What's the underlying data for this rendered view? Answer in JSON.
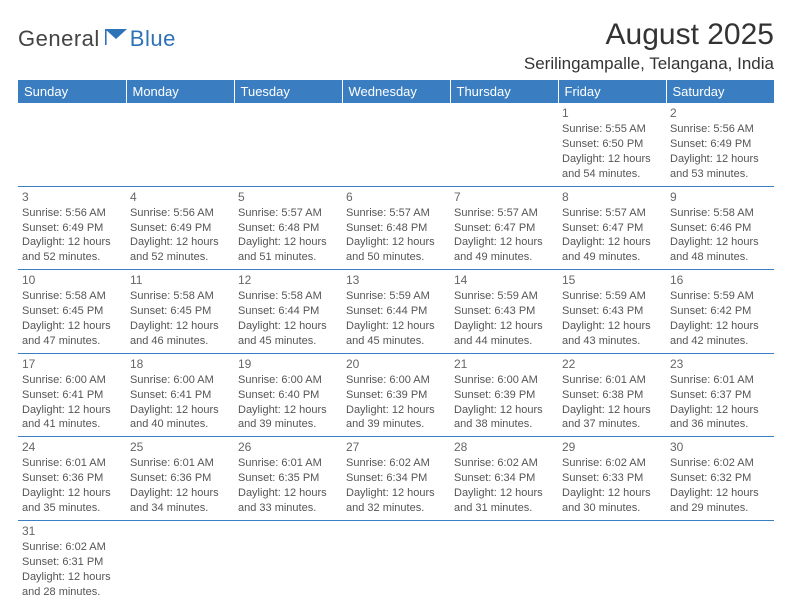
{
  "logo": {
    "text1": "General",
    "text2": "Blue"
  },
  "title": "August 2025",
  "location": "Serilingampalle, Telangana, India",
  "colors": {
    "header_bg": "#3a7ec1",
    "header_text": "#ffffff",
    "cell_border": "#3a7ec1",
    "body_text": "#555",
    "logo_blue": "#2e72b8",
    "title_text": "#333"
  },
  "typography": {
    "title_fontsize": 30,
    "location_fontsize": 17,
    "dayhead_fontsize": 13,
    "cell_fontsize": 11
  },
  "day_headers": [
    "Sunday",
    "Monday",
    "Tuesday",
    "Wednesday",
    "Thursday",
    "Friday",
    "Saturday"
  ],
  "weeks": [
    [
      null,
      null,
      null,
      null,
      null,
      {
        "n": "1",
        "sr": "5:55 AM",
        "ss": "6:50 PM",
        "dlh": "12",
        "dlm": "54"
      },
      {
        "n": "2",
        "sr": "5:56 AM",
        "ss": "6:49 PM",
        "dlh": "12",
        "dlm": "53"
      }
    ],
    [
      {
        "n": "3",
        "sr": "5:56 AM",
        "ss": "6:49 PM",
        "dlh": "12",
        "dlm": "52"
      },
      {
        "n": "4",
        "sr": "5:56 AM",
        "ss": "6:49 PM",
        "dlh": "12",
        "dlm": "52"
      },
      {
        "n": "5",
        "sr": "5:57 AM",
        "ss": "6:48 PM",
        "dlh": "12",
        "dlm": "51"
      },
      {
        "n": "6",
        "sr": "5:57 AM",
        "ss": "6:48 PM",
        "dlh": "12",
        "dlm": "50"
      },
      {
        "n": "7",
        "sr": "5:57 AM",
        "ss": "6:47 PM",
        "dlh": "12",
        "dlm": "49"
      },
      {
        "n": "8",
        "sr": "5:57 AM",
        "ss": "6:47 PM",
        "dlh": "12",
        "dlm": "49"
      },
      {
        "n": "9",
        "sr": "5:58 AM",
        "ss": "6:46 PM",
        "dlh": "12",
        "dlm": "48"
      }
    ],
    [
      {
        "n": "10",
        "sr": "5:58 AM",
        "ss": "6:45 PM",
        "dlh": "12",
        "dlm": "47"
      },
      {
        "n": "11",
        "sr": "5:58 AM",
        "ss": "6:45 PM",
        "dlh": "12",
        "dlm": "46"
      },
      {
        "n": "12",
        "sr": "5:58 AM",
        "ss": "6:44 PM",
        "dlh": "12",
        "dlm": "45"
      },
      {
        "n": "13",
        "sr": "5:59 AM",
        "ss": "6:44 PM",
        "dlh": "12",
        "dlm": "45"
      },
      {
        "n": "14",
        "sr": "5:59 AM",
        "ss": "6:43 PM",
        "dlh": "12",
        "dlm": "44"
      },
      {
        "n": "15",
        "sr": "5:59 AM",
        "ss": "6:43 PM",
        "dlh": "12",
        "dlm": "43"
      },
      {
        "n": "16",
        "sr": "5:59 AM",
        "ss": "6:42 PM",
        "dlh": "12",
        "dlm": "42"
      }
    ],
    [
      {
        "n": "17",
        "sr": "6:00 AM",
        "ss": "6:41 PM",
        "dlh": "12",
        "dlm": "41"
      },
      {
        "n": "18",
        "sr": "6:00 AM",
        "ss": "6:41 PM",
        "dlh": "12",
        "dlm": "40"
      },
      {
        "n": "19",
        "sr": "6:00 AM",
        "ss": "6:40 PM",
        "dlh": "12",
        "dlm": "39"
      },
      {
        "n": "20",
        "sr": "6:00 AM",
        "ss": "6:39 PM",
        "dlh": "12",
        "dlm": "39"
      },
      {
        "n": "21",
        "sr": "6:00 AM",
        "ss": "6:39 PM",
        "dlh": "12",
        "dlm": "38"
      },
      {
        "n": "22",
        "sr": "6:01 AM",
        "ss": "6:38 PM",
        "dlh": "12",
        "dlm": "37"
      },
      {
        "n": "23",
        "sr": "6:01 AM",
        "ss": "6:37 PM",
        "dlh": "12",
        "dlm": "36"
      }
    ],
    [
      {
        "n": "24",
        "sr": "6:01 AM",
        "ss": "6:36 PM",
        "dlh": "12",
        "dlm": "35"
      },
      {
        "n": "25",
        "sr": "6:01 AM",
        "ss": "6:36 PM",
        "dlh": "12",
        "dlm": "34"
      },
      {
        "n": "26",
        "sr": "6:01 AM",
        "ss": "6:35 PM",
        "dlh": "12",
        "dlm": "33"
      },
      {
        "n": "27",
        "sr": "6:02 AM",
        "ss": "6:34 PM",
        "dlh": "12",
        "dlm": "32"
      },
      {
        "n": "28",
        "sr": "6:02 AM",
        "ss": "6:34 PM",
        "dlh": "12",
        "dlm": "31"
      },
      {
        "n": "29",
        "sr": "6:02 AM",
        "ss": "6:33 PM",
        "dlh": "12",
        "dlm": "30"
      },
      {
        "n": "30",
        "sr": "6:02 AM",
        "ss": "6:32 PM",
        "dlh": "12",
        "dlm": "29"
      }
    ],
    [
      {
        "n": "31",
        "sr": "6:02 AM",
        "ss": "6:31 PM",
        "dlh": "12",
        "dlm": "28"
      },
      null,
      null,
      null,
      null,
      null,
      null
    ]
  ],
  "labels": {
    "sunrise": "Sunrise:",
    "sunset": "Sunset:",
    "daylight": "Daylight:",
    "hours": "hours",
    "and": "and",
    "minutes": "minutes."
  }
}
